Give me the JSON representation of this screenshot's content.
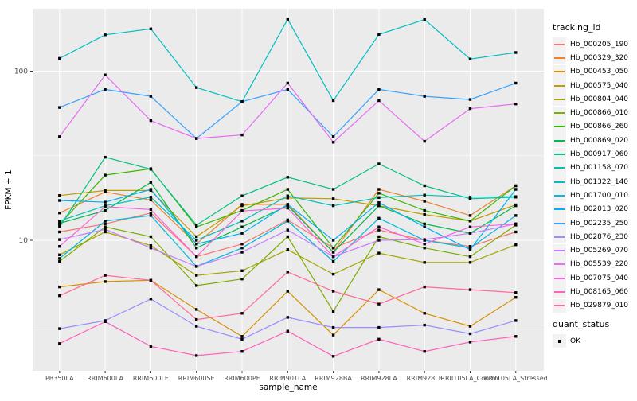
{
  "figure": {
    "background": "#FFFFFF",
    "panel_bg": "#EBEBEB",
    "grid_color": "#FFFFFF",
    "tick_label_color": "#4D4D4D",
    "axis_title_color": "#000000",
    "tick_mark_color": "#333333",
    "point_color": "#000000",
    "legend_key_bg": "#F2F2F2"
  },
  "chart_data": {
    "type": "line",
    "title": "",
    "xlabel": "sample_name",
    "ylabel": "FPKM + 1",
    "y_scale": "log10",
    "y_ticks": [
      100,
      10
    ],
    "y_minor": [
      31.62,
      3.162
    ],
    "ylim": [
      1.6,
      235
    ],
    "grid": true,
    "legend_position": "right",
    "point_shape": "filled-square",
    "categories": [
      "PB350LA",
      "RRIM600LA",
      "RRIM600LE",
      "RRIM600SE",
      "RRIM600PE",
      "RRIM901LA",
      "RRIM928BA",
      "RRIM928LA",
      "RRIM928LE",
      "RRII105LA_Control",
      "RRII105LA_Stressed"
    ],
    "series": [
      {
        "name": "Hb_000205_190",
        "color": "#F8766D",
        "values": [
          11.2,
          12.5,
          14.5,
          8.0,
          9.5,
          13.2,
          9.0,
          11.5,
          10.0,
          9.2,
          11.2
        ]
      },
      {
        "name": "Hb_000329_320",
        "color": "#EA8331",
        "values": [
          14.5,
          19.3,
          17.3,
          9.5,
          16.3,
          16.3,
          8.5,
          20,
          17,
          14,
          21
        ]
      },
      {
        "name": "Hb_000453_050",
        "color": "#D89000",
        "values": [
          5.3,
          5.7,
          5.8,
          3.9,
          2.7,
          5.0,
          2.75,
          5.1,
          3.7,
          3.1,
          4.6
        ]
      },
      {
        "name": "Hb_000575_040",
        "color": "#C09B00",
        "values": [
          18.4,
          19.7,
          19.7,
          10.5,
          16,
          17.8,
          17.6,
          16,
          14.2,
          13,
          16.2
        ]
      },
      {
        "name": "Hb_000804_040",
        "color": "#A3A500",
        "values": [
          8.2,
          11.2,
          9.3,
          6.2,
          6.6,
          8.8,
          6.3,
          8.4,
          7.4,
          7.4,
          9.4
        ]
      },
      {
        "name": "Hb_000866_010",
        "color": "#7CAE00",
        "values": [
          7.5,
          12,
          10.5,
          5.4,
          5.9,
          10.5,
          3.8,
          10.5,
          9.0,
          8.0,
          12.3
        ]
      },
      {
        "name": "Hb_000866_260",
        "color": "#39B600",
        "values": [
          12.4,
          24.3,
          26.5,
          12,
          15,
          20,
          9,
          19,
          15,
          13,
          21
        ]
      },
      {
        "name": "Hb_000869_020",
        "color": "#00BB4E",
        "values": [
          12.6,
          15,
          22,
          9,
          12,
          16,
          8.5,
          16,
          12.5,
          11,
          16
        ]
      },
      {
        "name": "Hb_000917_060",
        "color": "#00C087",
        "values": [
          12.0,
          31,
          26.3,
          12.3,
          18.3,
          23.6,
          20,
          28.3,
          21,
          17.6,
          18
        ]
      },
      {
        "name": "Hb_001158_070",
        "color": "#00C0B8",
        "values": [
          13,
          16,
          18,
          10,
          13,
          18.3,
          16,
          17.9,
          18.5,
          18,
          18.1
        ]
      },
      {
        "name": "Hb_001322_140",
        "color": "#00BFC4",
        "values": [
          119,
          164,
          178,
          80,
          66,
          203,
          67,
          165,
          202,
          118,
          129
        ]
      },
      {
        "name": "Hb_001700_010",
        "color": "#00BAE0",
        "values": [
          7.8,
          13,
          14,
          7.0,
          9.0,
          13,
          7.5,
          13.5,
          10,
          9.0,
          14
        ]
      },
      {
        "name": "Hb_002013_020",
        "color": "#00B0F6",
        "values": [
          17.2,
          16.8,
          20,
          9.5,
          11,
          16.3,
          10,
          16.7,
          12,
          8.8,
          20
        ]
      },
      {
        "name": "Hb_002235_250",
        "color": "#35A2FF",
        "values": [
          61,
          78,
          71,
          40,
          66,
          78,
          41,
          78,
          71,
          68,
          85
        ]
      },
      {
        "name": "Hb_002876_230",
        "color": "#9590FF",
        "values": [
          3.0,
          3.35,
          4.5,
          3.1,
          2.6,
          3.5,
          3.05,
          3.05,
          3.15,
          2.8,
          3.35
        ]
      },
      {
        "name": "Hb_005269_070",
        "color": "#C77CFF",
        "values": [
          10.1,
          11.6,
          9.0,
          7.0,
          8.5,
          11.5,
          8.0,
          10.0,
          10.1,
          11,
          12.5
        ]
      },
      {
        "name": "Hb_005539_220",
        "color": "#E76BF3",
        "values": [
          41,
          95,
          51,
          40,
          42,
          85,
          38,
          67,
          38.5,
          60,
          64
        ]
      },
      {
        "name": "Hb_007075_040",
        "color": "#FA62DB",
        "values": [
          9.2,
          15.8,
          15.2,
          8.0,
          14.9,
          15.5,
          8.0,
          12.0,
          9.5,
          12.0,
          12.5
        ]
      },
      {
        "name": "Hb_008165_060",
        "color": "#FF62BC",
        "values": [
          2.45,
          3.3,
          2.36,
          2.08,
          2.2,
          2.9,
          2.06,
          2.6,
          2.2,
          2.5,
          2.7
        ]
      },
      {
        "name": "Hb_029879_010",
        "color": "#FF6A98",
        "values": [
          4.7,
          6.2,
          5.8,
          3.4,
          3.7,
          6.5,
          5.0,
          4.2,
          5.3,
          5.1,
          4.9
        ]
      }
    ],
    "legend": {
      "color_title": "tracking_id",
      "shape_title": "quant_status",
      "shape_entries": [
        {
          "label": "OK"
        }
      ]
    }
  }
}
